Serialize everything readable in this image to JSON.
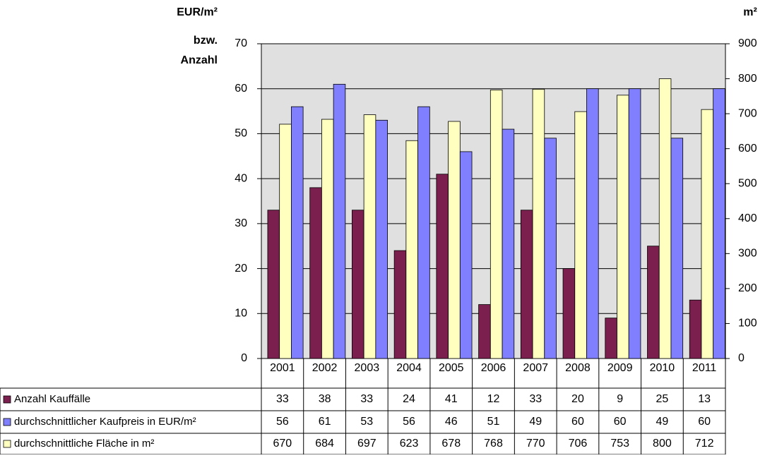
{
  "chart_data": {
    "type": "bar",
    "ylabel": [
      "EUR/m²",
      "bzw.",
      "Anzahl"
    ],
    "y2label": "m²",
    "categories": [
      "2001",
      "2002",
      "2003",
      "2004",
      "2005",
      "2006",
      "2007",
      "2008",
      "2009",
      "2010",
      "2011"
    ],
    "series": [
      {
        "name": "Anzahl Kauffälle",
        "color": "#7b1f4e",
        "values": [
          33,
          38,
          33,
          24,
          41,
          12,
          33,
          20,
          9,
          25,
          13
        ]
      },
      {
        "name": "durchschnittlicher Kaufpreis in EUR/m²",
        "color": "#8080ff",
        "values": [
          56,
          61,
          53,
          56,
          46,
          51,
          49,
          60,
          60,
          49,
          60
        ]
      },
      {
        "name": "durchschnittliche Fläche in m²",
        "color": "#ffffc0",
        "axis": "y2",
        "values": [
          670,
          684,
          697,
          623,
          678,
          768,
          770,
          706,
          753,
          800,
          712
        ]
      }
    ],
    "bar_order": [
      0,
      2,
      1
    ],
    "ylim": [
      0,
      70
    ],
    "yticks": [
      0,
      10,
      20,
      30,
      40,
      50,
      60,
      70
    ],
    "y2lim": [
      0,
      900
    ],
    "y2ticks": [
      0,
      100,
      200,
      300,
      400,
      500,
      600,
      700,
      800,
      900
    ],
    "grid": true
  }
}
